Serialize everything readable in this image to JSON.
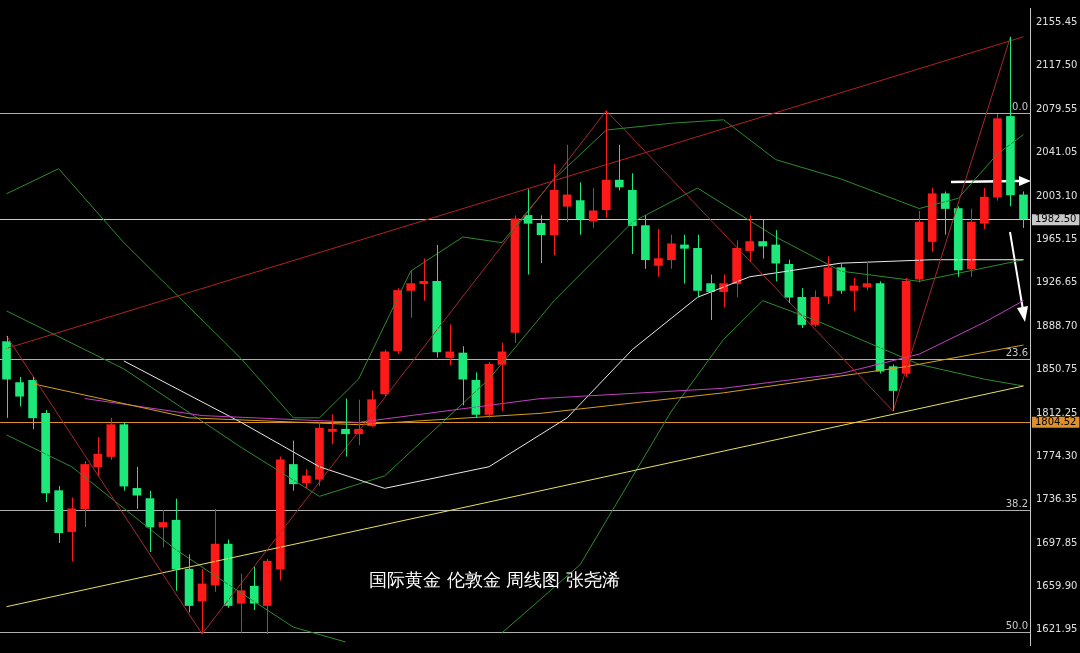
{
  "chart_data": {
    "type": "candlestick",
    "title": "国际黄金 伦敦金 周线图 张尧浠",
    "categories": [
      null,
      null,
      null,
      null,
      null,
      null,
      null,
      null,
      null,
      null,
      null,
      null,
      null,
      null,
      null,
      null,
      null,
      null,
      null,
      null,
      null,
      null,
      null,
      null,
      null,
      null,
      null,
      null,
      null,
      null,
      null,
      null,
      null,
      null,
      null,
      null,
      null,
      null,
      null,
      null,
      null,
      null,
      null,
      null,
      null,
      null,
      null,
      null,
      null,
      null,
      null,
      null,
      null,
      null,
      null,
      null,
      null,
      null,
      null,
      null,
      null,
      null,
      null,
      null,
      null,
      null,
      null,
      null,
      null,
      null,
      null,
      null,
      null,
      null,
      null,
      null,
      null,
      null,
      null
    ],
    "ohlc": [
      [
        1875,
        1880,
        1808,
        1842
      ],
      [
        1839,
        1844,
        1818,
        1827
      ],
      [
        1841,
        1844,
        1798,
        1808
      ],
      [
        1812,
        1815,
        1734,
        1742
      ],
      [
        1744,
        1748,
        1698,
        1707
      ],
      [
        1708,
        1738,
        1682,
        1728
      ],
      [
        1728,
        1770,
        1712,
        1767
      ],
      [
        1765,
        1791,
        1757,
        1776
      ],
      [
        1774,
        1808,
        1771,
        1802
      ],
      [
        1802,
        1804,
        1744,
        1748
      ],
      [
        1746,
        1765,
        1728,
        1740
      ],
      [
        1737,
        1744,
        1690,
        1712
      ],
      [
        1712,
        1727,
        1694,
        1716
      ],
      [
        1718,
        1737,
        1656,
        1675
      ],
      [
        1675,
        1688,
        1637,
        1643
      ],
      [
        1647,
        1675,
        1618,
        1662
      ],
      [
        1661,
        1728,
        1655,
        1697
      ],
      [
        1697,
        1701,
        1641,
        1643
      ],
      [
        1645,
        1671,
        1619,
        1656
      ],
      [
        1660,
        1677,
        1639,
        1645
      ],
      [
        1643,
        1684,
        1618,
        1682
      ],
      [
        1675,
        1774,
        1665,
        1771
      ],
      [
        1767,
        1788,
        1744,
        1750
      ],
      [
        1751,
        1763,
        1746,
        1757
      ],
      [
        1754,
        1804,
        1748,
        1799
      ],
      [
        1796,
        1811,
        1785,
        1798
      ],
      [
        1798,
        1825,
        1774,
        1794
      ],
      [
        1794,
        1824,
        1784,
        1798
      ],
      [
        1801,
        1832,
        1800,
        1824
      ],
      [
        1829,
        1868,
        1827,
        1866
      ],
      [
        1867,
        1922,
        1864,
        1920
      ],
      [
        1920,
        1937,
        1896,
        1926
      ],
      [
        1926,
        1948,
        1911,
        1928
      ],
      [
        1928,
        1960,
        1861,
        1866
      ],
      [
        1861,
        1890,
        1854,
        1866
      ],
      [
        1865,
        1871,
        1819,
        1842
      ],
      [
        1841,
        1848,
        1808,
        1811
      ],
      [
        1811,
        1857,
        1808,
        1855
      ],
      [
        1855,
        1874,
        1814,
        1866
      ],
      [
        1883,
        1986,
        1874,
        1983
      ],
      [
        1986,
        2009,
        1934,
        1979
      ],
      [
        1979,
        1986,
        1944,
        1969
      ],
      [
        1969,
        2031,
        1951,
        2008
      ],
      [
        1994,
        2048,
        1980,
        2004
      ],
      [
        1999,
        2015,
        1969,
        1983
      ],
      [
        1981,
        2010,
        1975,
        1990
      ],
      [
        1991,
        2078,
        1984,
        2017
      ],
      [
        2017,
        2048,
        2008,
        2011
      ],
      [
        2008,
        2023,
        1952,
        1977
      ],
      [
        1977,
        1986,
        1939,
        1947
      ],
      [
        1942,
        1974,
        1932,
        1948
      ],
      [
        1947,
        1969,
        1939,
        1961
      ],
      [
        1960,
        1969,
        1926,
        1957
      ],
      [
        1957,
        1969,
        1914,
        1920
      ],
      [
        1926,
        1934,
        1894,
        1919
      ],
      [
        1919,
        1934,
        1905,
        1926
      ],
      [
        1926,
        1964,
        1914,
        1957
      ],
      [
        1955,
        1986,
        1945,
        1963
      ],
      [
        1963,
        1982,
        1948,
        1959
      ],
      [
        1960,
        1973,
        1928,
        1944
      ],
      [
        1943,
        1947,
        1909,
        1914
      ],
      [
        1914,
        1922,
        1887,
        1890
      ],
      [
        1890,
        1920,
        1888,
        1914
      ],
      [
        1915,
        1950,
        1908,
        1940
      ],
      [
        1940,
        1944,
        1917,
        1920
      ],
      [
        1920,
        1931,
        1902,
        1924
      ],
      [
        1923,
        1945,
        1920,
        1926
      ],
      [
        1926,
        1928,
        1847,
        1849
      ],
      [
        1853,
        1855,
        1814,
        1832
      ],
      [
        1847,
        1931,
        1844,
        1928
      ],
      [
        1930,
        1990,
        1927,
        1980
      ],
      [
        1963,
        2010,
        1954,
        2005
      ],
      [
        2005,
        2007,
        1969,
        1992
      ],
      [
        1992,
        1994,
        1932,
        1938
      ],
      [
        1939,
        1992,
        1932,
        1980
      ],
      [
        1979,
        2010,
        1974,
        2002
      ],
      [
        2002,
        2075,
        1999,
        2071
      ],
      [
        2073,
        2143,
        1994,
        2004
      ],
      [
        2004,
        2007,
        1975,
        1983
      ]
    ],
    "colors": [
      "#1de97a",
      "#1de97a",
      "#1de97a",
      "#1de97a",
      "#1de97a",
      "#ff1a1a",
      "#ff1a1a",
      "#ff1a1a",
      "#ff1a1a",
      "#1de97a",
      "#1de97a",
      "#1de97a",
      "#ff1a1a",
      "#1de97a",
      "#1de97a",
      "#ff1a1a",
      "#ff1a1a",
      "#1de97a",
      "#ff1a1a",
      "#1de97a",
      "#ff1a1a",
      "#ff1a1a",
      "#1de97a",
      "#ff1a1a",
      "#ff1a1a",
      "#ff1a1a",
      "#1de97a",
      "#ff1a1a",
      "#ff1a1a",
      "#ff1a1a",
      "#ff1a1a",
      "#ff1a1a",
      "#ff1a1a",
      "#1de97a",
      "#ff1a1a",
      "#1de97a",
      "#1de97a",
      "#ff1a1a",
      "#ff1a1a",
      "#ff1a1a",
      "#1de97a",
      "#1de97a",
      "#ff1a1a",
      "#ff1a1a",
      "#1de97a",
      "#ff1a1a",
      "#ff1a1a",
      "#1de97a",
      "#1de97a",
      "#1de97a",
      "#ff1a1a",
      "#ff1a1a",
      "#1de97a",
      "#1de97a",
      "#1de97a",
      "#ff1a1a",
      "#ff1a1a",
      "#ff1a1a",
      "#1de97a",
      "#1de97a",
      "#1de97a",
      "#1de97a",
      "#ff1a1a",
      "#ff1a1a",
      "#1de97a",
      "#ff1a1a",
      "#ff1a1a",
      "#1de97a",
      "#1de97a",
      "#ff1a1a",
      "#ff1a1a",
      "#ff1a1a",
      "#1de97a",
      "#1de97a",
      "#ff1a1a",
      "#ff1a1a",
      "#ff1a1a",
      "#1de97a",
      "#1de97a"
    ],
    "series": [
      {
        "type": "line",
        "color": "#b22222",
        "values": [
          1869,
          null,
          null,
          null,
          null,
          null,
          null,
          null,
          null,
          null,
          null,
          null,
          null,
          null,
          null,
          null,
          null,
          null,
          null,
          null,
          null,
          null,
          null,
          null,
          null,
          null,
          null,
          null,
          null,
          null,
          null,
          null,
          null,
          null,
          null,
          null,
          null,
          null,
          null,
          null,
          null,
          null,
          null,
          null,
          null,
          null,
          null,
          null,
          null,
          null,
          null,
          null,
          null,
          null,
          null,
          null,
          null,
          null,
          null,
          null,
          null,
          null,
          null,
          null,
          null,
          null,
          null,
          null,
          null,
          null,
          null,
          null,
          null,
          null,
          null,
          null,
          null,
          null,
          2143
        ]
      },
      {
        "type": "line",
        "color": "#a52a2a",
        "values": [
          1880,
          null,
          null,
          null,
          null,
          null,
          null,
          null,
          null,
          null,
          null,
          null,
          null,
          null,
          null,
          1618,
          null,
          null,
          null,
          null,
          null,
          null,
          null,
          null,
          null,
          null,
          null,
          null,
          null,
          null,
          null,
          null,
          null,
          null,
          null,
          null,
          null,
          null,
          null,
          null,
          null,
          null,
          null,
          null,
          null,
          null,
          2078,
          null,
          null,
          null,
          null,
          null,
          null,
          null,
          null,
          null,
          null,
          null,
          null,
          null,
          null,
          null,
          null,
          null,
          null,
          null,
          null,
          null,
          1814,
          null,
          null,
          null,
          null,
          null,
          null,
          null,
          null,
          2143,
          null
        ]
      },
      {
        "type": "line",
        "color": "#e8e05a",
        "values": [
          1642,
          null,
          null,
          null,
          null,
          null,
          null,
          null,
          null,
          null,
          null,
          null,
          null,
          null,
          null,
          null,
          null,
          null,
          null,
          null,
          null,
          null,
          null,
          null,
          null,
          null,
          null,
          null,
          null,
          null,
          null,
          null,
          null,
          null,
          null,
          null,
          null,
          null,
          null,
          null,
          null,
          null,
          null,
          null,
          null,
          null,
          null,
          null,
          null,
          null,
          null,
          null,
          null,
          null,
          null,
          null,
          null,
          null,
          null,
          null,
          null,
          null,
          null,
          null,
          null,
          null,
          null,
          null,
          null,
          null,
          null,
          null,
          null,
          null,
          null,
          null,
          null,
          null,
          1836
        ]
      },
      {
        "type": "line",
        "color": "#d4a017",
        "values": [
          null,
          null,
          1838,
          null,
          null,
          null,
          null,
          null,
          null,
          null,
          null,
          null,
          null,
          null,
          1808,
          null,
          null,
          null,
          null,
          null,
          null,
          null,
          null,
          null,
          null,
          null,
          null,
          1802,
          null,
          null,
          null,
          null,
          null,
          null,
          null,
          null,
          null,
          null,
          null,
          null,
          null,
          1812,
          null,
          null,
          null,
          null,
          null,
          null,
          null,
          null,
          null,
          null,
          null,
          null,
          null,
          1830,
          null,
          null,
          null,
          null,
          null,
          null,
          null,
          null,
          null,
          null,
          null,
          null,
          null,
          1853,
          null,
          null,
          null,
          null,
          null,
          null,
          null,
          null,
          1872
        ]
      },
      {
        "type": "line",
        "color": "#c040c0",
        "values": [
          null,
          null,
          null,
          null,
          null,
          null,
          1825,
          null,
          null,
          null,
          null,
          null,
          null,
          null,
          null,
          1810,
          null,
          null,
          null,
          null,
          null,
          null,
          null,
          null,
          null,
          null,
          null,
          1804,
          null,
          null,
          null,
          null,
          null,
          null,
          null,
          null,
          null,
          null,
          null,
          null,
          null,
          1825,
          null,
          null,
          null,
          null,
          null,
          null,
          null,
          null,
          null,
          null,
          null,
          null,
          null,
          1834,
          null,
          null,
          null,
          null,
          null,
          null,
          null,
          null,
          1847,
          null,
          null,
          null,
          null,
          null,
          1864,
          null,
          null,
          null,
          null,
          1892,
          null,
          null,
          1911
        ]
      },
      {
        "type": "line",
        "color": "#e8e8e8",
        "values": [
          null,
          null,
          null,
          null,
          null,
          null,
          null,
          null,
          null,
          1858,
          null,
          null,
          null,
          null,
          null,
          null,
          null,
          null,
          1804,
          null,
          null,
          null,
          null,
          null,
          1765,
          null,
          null,
          null,
          null,
          1746,
          null,
          null,
          null,
          null,
          null,
          null,
          null,
          1765,
          null,
          null,
          null,
          null,
          null,
          1808,
          null,
          null,
          null,
          null,
          1868,
          null,
          null,
          null,
          null,
          1914,
          null,
          null,
          null,
          1932,
          null,
          null,
          null,
          null,
          null,
          null,
          1944,
          null,
          null,
          null,
          null,
          null,
          null,
          1947,
          null,
          null,
          null,
          null,
          null,
          null,
          1947
        ]
      },
      {
        "type": "line",
        "color": "#2e8b2e",
        "values": [
          2005,
          null,
          null,
          null,
          2027,
          null,
          null,
          null,
          null,
          1962,
          null,
          null,
          null,
          null,
          null,
          null,
          null,
          null,
          1860,
          null,
          null,
          null,
          1808,
          null,
          1808,
          null,
          null,
          1842,
          null,
          null,
          null,
          1937,
          null,
          null,
          null,
          1967,
          null,
          null,
          1962,
          null,
          null,
          null,
          2018,
          null,
          null,
          null,
          2061,
          null,
          null,
          null,
          null,
          2067,
          null,
          null,
          null,
          2070,
          null,
          null,
          null,
          2035,
          null,
          null,
          null,
          null,
          2018,
          null,
          null,
          null,
          null,
          null,
          1992,
          null,
          null,
          2001,
          null,
          null,
          2040,
          null,
          2057
        ]
      },
      {
        "type": "line",
        "color": "#2e8b2e",
        "values": [
          1793,
          null,
          null,
          null,
          null,
          1765,
          null,
          null,
          null,
          null,
          null,
          null,
          null,
          1692,
          null,
          null,
          null,
          null,
          1654,
          null,
          null,
          null,
          1624,
          null,
          null,
          null,
          1611,
          null,
          null,
          null,
          null,
          null,
          null,
          null,
          null,
          null,
          null,
          null,
          null,
          null,
          null,
          null,
          null,
          null,
          null,
          null,
          null,
          null,
          null,
          null,
          null,
          null,
          null,
          null,
          null,
          null,
          null,
          null,
          null,
          null,
          null,
          null,
          null,
          null,
          null,
          null,
          null,
          null,
          null,
          null,
          null,
          null,
          null,
          null,
          null,
          null,
          null,
          null,
          null
        ]
      },
      {
        "type": "line",
        "color": "#2e8b2e",
        "values": [
          null,
          null,
          null,
          null,
          null,
          null,
          null,
          null,
          null,
          null,
          null,
          null,
          null,
          null,
          null,
          null,
          null,
          null,
          null,
          null,
          null,
          null,
          null,
          null,
          null,
          null,
          null,
          null,
          null,
          null,
          null,
          null,
          null,
          null,
          null,
          null,
          null,
          null,
          1619,
          null,
          null,
          null,
          null,
          null,
          1679,
          null,
          null,
          null,
          null,
          null,
          null,
          1814,
          null,
          null,
          null,
          1877,
          null,
          null,
          1911,
          null,
          null,
          null,
          1894,
          null,
          null,
          null,
          null,
          null,
          null,
          null,
          1855,
          null,
          null,
          null,
          null,
          1842,
          null,
          null,
          1836
        ]
      },
      {
        "type": "line",
        "color": "#2e8b2e",
        "values": [
          1902,
          null,
          null,
          null,
          null,
          null,
          null,
          null,
          null,
          1851,
          null,
          null,
          null,
          null,
          null,
          null,
          null,
          null,
          1782,
          null,
          null,
          null,
          null,
          null,
          1739,
          null,
          null,
          null,
          null,
          1757,
          null,
          null,
          null,
          null,
          null,
          null,
          null,
          1842,
          null,
          null,
          null,
          null,
          1911,
          null,
          null,
          null,
          null,
          null,
          1980,
          null,
          null,
          null,
          null,
          2010,
          null,
          null,
          null,
          null,
          null,
          1967,
          null,
          null,
          null,
          null,
          1937,
          null,
          null,
          null,
          null,
          null,
          1928,
          null,
          null,
          null,
          null,
          null,
          null,
          null,
          1947
        ]
      }
    ],
    "ylim": [
      1608.3,
      2168.3
    ],
    "yticks": [
      {
        "value": 1621.95,
        "label": "1621.95"
      },
      {
        "value": 1659.9,
        "label": "1659.90"
      },
      {
        "value": 1697.85,
        "label": "1697.85"
      },
      {
        "value": 1736.35,
        "label": "1736.35"
      },
      {
        "value": 1774.3,
        "label": "1774.30"
      },
      {
        "value": 1812.25,
        "label": "1812.25"
      },
      {
        "value": 1850.75,
        "label": "1850.75"
      },
      {
        "value": 1888.7,
        "label": "1888.70"
      },
      {
        "value": 1926.65,
        "label": "1926.65"
      },
      {
        "value": 1965.15,
        "label": "1965.15"
      },
      {
        "value": 2003.1,
        "label": "2003.10"
      },
      {
        "value": 2041.05,
        "label": "2041.05"
      },
      {
        "value": 2079.55,
        "label": "2079.55"
      },
      {
        "value": 2117.5,
        "label": "2117.50"
      },
      {
        "value": 2155.45,
        "label": "2155.45"
      }
    ],
    "ref_lines": [
      {
        "axis": "y",
        "value": 2075.7
      },
      {
        "axis": "y",
        "value": 1859.6
      },
      {
        "axis": "y",
        "value": 1726.6
      },
      {
        "axis": "y",
        "value": 1619.4
      },
      {
        "axis": "y",
        "value": 1982.5,
        "label": "1982.50",
        "color": "#c8c8c8"
      },
      {
        "axis": "y",
        "value": 1804.52,
        "label": "1804.52",
        "color": "#e0902a"
      }
    ],
    "annotations": [
      {
        "text": "0.0",
        "y": 2075.7
      },
      {
        "text": "23.6",
        "y": 1859.6
      },
      {
        "text": "38.2",
        "y": 1726.6
      },
      {
        "text": "50.0",
        "y": 1619.4
      }
    ],
    "tick_labels": "y",
    "grid": false,
    "legend": false
  }
}
